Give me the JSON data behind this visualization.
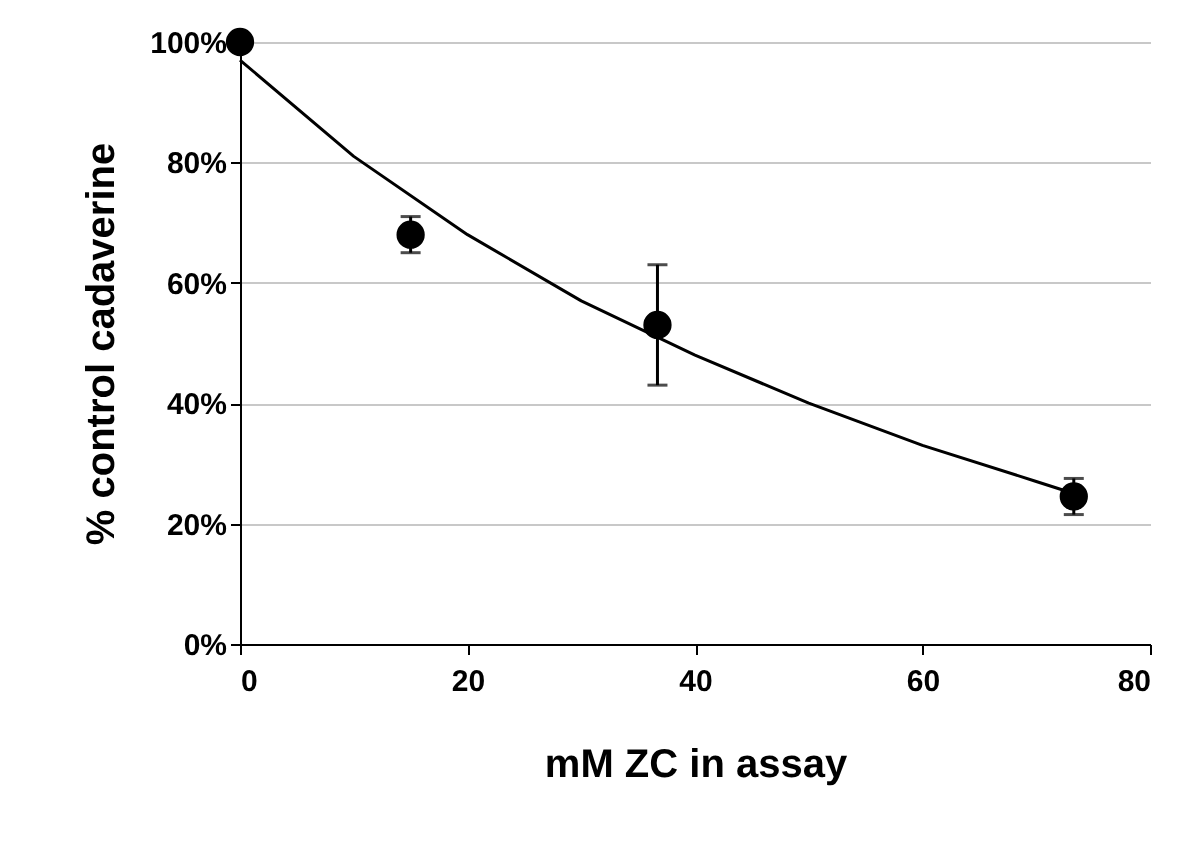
{
  "chart_data": {
    "type": "scatter",
    "xlabel": "mM ZC in assay",
    "ylabel": "% control cadaverine",
    "xlim": [
      0,
      80
    ],
    "xticks": [
      0,
      20,
      40,
      60,
      80
    ],
    "ylim": [
      0,
      100
    ],
    "yticks": [
      {
        "value": 0,
        "label": "0%"
      },
      {
        "value": 20,
        "label": "20%"
      },
      {
        "value": 40,
        "label": "40%"
      },
      {
        "value": 60,
        "label": "60%"
      },
      {
        "value": 80,
        "label": "80%"
      },
      {
        "value": 100,
        "label": "100%"
      }
    ],
    "grid": "y",
    "series": [
      {
        "color": "#000000",
        "marker": "circle",
        "x": [
          0,
          15,
          36.7,
          73.3
        ],
        "values": [
          100,
          68,
          53,
          24.5
        ],
        "errors": [
          null,
          3,
          10,
          3
        ]
      },
      {
        "type": "line",
        "color": "#000000",
        "marker": "none",
        "line_style": "solid",
        "x": [
          0,
          10,
          20,
          30,
          40,
          50,
          60,
          70,
          73.3
        ],
        "values": [
          97,
          81,
          68,
          57,
          48,
          40,
          33,
          27,
          25
        ]
      }
    ]
  }
}
